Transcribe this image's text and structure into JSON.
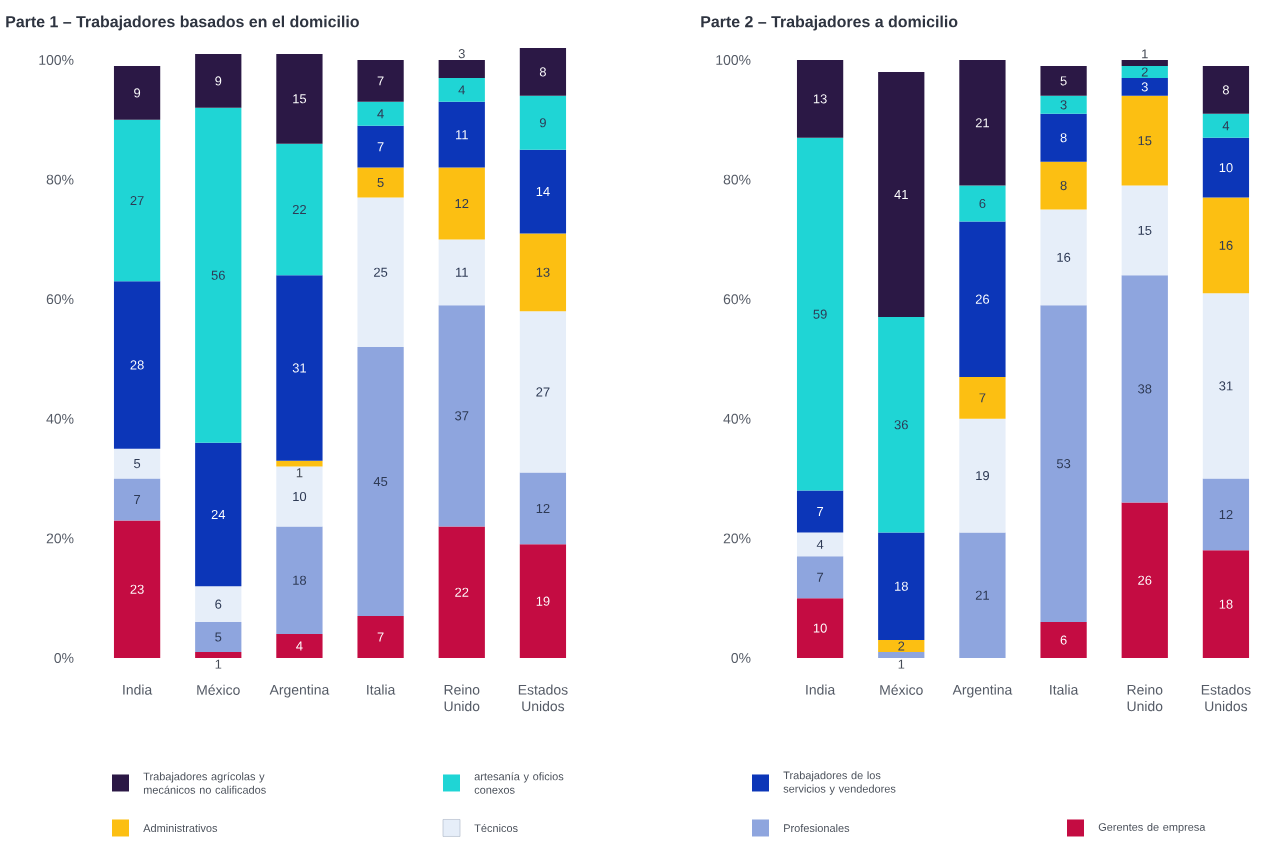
{
  "chart_data": [
    {
      "type": "bar",
      "title": "Parte 1 – Trabajadores basados en el domicilio",
      "categories": [
        "India",
        "México",
        "Argentina",
        "Italia",
        "Reino Unido",
        "Estados Unidos"
      ],
      "stacked": true,
      "data_labels": true,
      "legend": "bottom",
      "ylim": [
        0,
        102
      ],
      "yticks": [
        {
          "value": 0,
          "label": "0%"
        },
        {
          "value": 20,
          "label": "20%"
        },
        {
          "value": 40,
          "label": "40%"
        },
        {
          "value": 60,
          "label": "60%"
        },
        {
          "value": 80,
          "label": "80%"
        },
        {
          "value": 100,
          "label": "100%"
        }
      ],
      "series": [
        {
          "name": "Gerentes de empresa",
          "color": "#c40c42",
          "values": [
            23,
            1,
            4,
            7,
            22,
            19
          ]
        },
        {
          "name": "Profesionales",
          "color": "#8ea5de",
          "values": [
            7,
            5,
            18,
            45,
            37,
            12
          ]
        },
        {
          "name": "Técnicos",
          "color": "#e6eef9",
          "values": [
            5,
            6,
            10,
            25,
            11,
            27
          ]
        },
        {
          "name": "Administrativos",
          "color": "#fcbf12",
          "values": [
            null,
            null,
            1,
            5,
            12,
            13
          ]
        },
        {
          "name": "Trabajadores de los servicios y vendedores",
          "color": "#0c36b8",
          "values": [
            28,
            24,
            31,
            7,
            11,
            14
          ]
        },
        {
          "name": "artesanía y oficios conexos",
          "color": "#1fd5d5",
          "values": [
            27,
            56,
            22,
            4,
            4,
            9
          ]
        },
        {
          "name": "Trabajadores agrícolas y mecánicos no calificados",
          "color": "#2b1845",
          "values": [
            9,
            9,
            15,
            7,
            3,
            8
          ]
        }
      ]
    },
    {
      "type": "bar",
      "title": "Parte 2 – Trabajadores a domicilio",
      "categories": [
        "India",
        "México",
        "Argentina",
        "Italia",
        "Reino Unido",
        "Estados Unidos"
      ],
      "stacked": true,
      "data_labels": true,
      "ylim": [
        0,
        100
      ],
      "yticks": [
        {
          "value": 0,
          "label": "0%"
        },
        {
          "value": 20,
          "label": "20%"
        },
        {
          "value": 40,
          "label": "40%"
        },
        {
          "value": 60,
          "label": "60%"
        },
        {
          "value": 80,
          "label": "80%"
        },
        {
          "value": 100,
          "label": "100%"
        }
      ],
      "series": [
        {
          "color": "#c40c42",
          "values": [
            10,
            null,
            null,
            6,
            26,
            18
          ]
        },
        {
          "color": "#8ea5de",
          "values": [
            7,
            1,
            21,
            53,
            38,
            12
          ]
        },
        {
          "color": "#e6eef9",
          "values": [
            4,
            null,
            19,
            16,
            15,
            31
          ]
        },
        {
          "color": "#fcbf12",
          "values": [
            null,
            2,
            7,
            8,
            15,
            16
          ]
        },
        {
          "color": "#0c36b8",
          "values": [
            7,
            18,
            26,
            8,
            3,
            10
          ]
        },
        {
          "color": "#1fd5d5",
          "values": [
            59,
            36,
            6,
            3,
            2,
            4
          ]
        },
        {
          "color": "#2b1845",
          "values": [
            13,
            41,
            21,
            5,
            1,
            8
          ]
        }
      ]
    }
  ]
}
